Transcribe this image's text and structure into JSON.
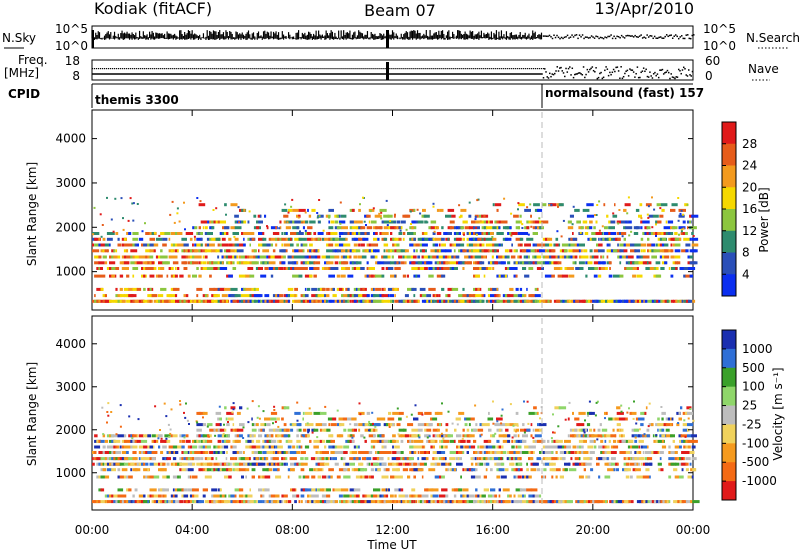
{
  "header": {
    "site": "Kodiak (fitACF)",
    "beam": "Beam 07",
    "date": "13/Apr/2010"
  },
  "noise_panel": {
    "left_label": "N.Sky",
    "right_label": "N.Search",
    "left_ticks": [
      "10^5",
      "10^0"
    ],
    "right_ticks": [
      "10^5",
      "10^0"
    ]
  },
  "freq_panel": {
    "left_label_1": "Freq.",
    "left_label_2": "[MHz]",
    "right_label": "Nave",
    "left_ticks": [
      "18",
      "8"
    ],
    "right_ticks": [
      "60",
      "0"
    ]
  },
  "cpid": {
    "label": "CPID",
    "modes": [
      {
        "name": "themis 3300",
        "start": "00:00"
      },
      {
        "name": "normalsound (fast) 157",
        "start": "18:00"
      }
    ]
  },
  "chart_data": [
    {
      "type": "heatmap",
      "name": "power",
      "ylabel": "Slant Range [km]",
      "xlabel": "",
      "x_range_hours": [
        0,
        24
      ],
      "ylim": [
        180,
        4600
      ],
      "yticks": [
        1000,
        2000,
        3000,
        4000
      ],
      "colorbar": {
        "label": "Power [dB]",
        "ticks": [
          4,
          8,
          12,
          16,
          20,
          24,
          28
        ],
        "range": [
          0,
          32
        ],
        "colors": [
          "#0b2ff0",
          "#2a4fb8",
          "#2e8b6e",
          "#8cc63f",
          "#f5d800",
          "#f39a1e",
          "#e65c1a",
          "#e01a1a"
        ]
      },
      "range_bands_km": [
        {
          "center": 330,
          "hours": [
            [
              0,
              24
            ]
          ],
          "density": 0.9
        },
        {
          "center": 460,
          "hours": [
            [
              0,
              18
            ]
          ],
          "density": 0.5
        },
        {
          "center": 600,
          "hours": [
            [
              0,
              18
            ]
          ],
          "density": 0.35
        },
        {
          "center": 900,
          "hours": [
            [
              0,
              18
            ],
            [
              18,
              24
            ]
          ],
          "density": 0.3
        },
        {
          "center": 1070,
          "hours": [
            [
              0,
              24
            ]
          ],
          "density": 0.45
        },
        {
          "center": 1200,
          "hours": [
            [
              0,
              18
            ],
            [
              18,
              24
            ]
          ],
          "density": 0.55
        },
        {
          "center": 1330,
          "hours": [
            [
              0,
              5
            ],
            [
              5,
              18
            ],
            [
              18,
              24
            ]
          ],
          "density": 0.6
        },
        {
          "center": 1470,
          "hours": [
            [
              0,
              18
            ],
            [
              18,
              24
            ]
          ],
          "density": 0.55
        },
        {
          "center": 1600,
          "hours": [
            [
              0,
              18
            ],
            [
              18,
              24
            ]
          ],
          "density": 0.5
        },
        {
          "center": 1730,
          "hours": [
            [
              0,
              18
            ],
            [
              18,
              24
            ]
          ],
          "density": 0.45
        },
        {
          "center": 1860,
          "hours": [
            [
              0,
              18
            ],
            [
              19,
              24
            ]
          ],
          "density": 0.45
        },
        {
          "center": 1990,
          "hours": [
            [
              4,
              18
            ],
            [
              19,
              24
            ]
          ],
          "density": 0.4
        },
        {
          "center": 2120,
          "hours": [
            [
              4,
              18
            ],
            [
              19,
              24
            ]
          ],
          "density": 0.35
        },
        {
          "center": 2250,
          "hours": [
            [
              5,
              18
            ],
            [
              19,
              24
            ]
          ],
          "density": 0.25
        },
        {
          "center": 2380,
          "hours": [
            [
              4,
              18
            ],
            [
              19,
              24
            ]
          ],
          "density": 0.2
        },
        {
          "center": 2510,
          "hours": [
            [
              4,
              8
            ],
            [
              16,
              24
            ]
          ],
          "density": 0.1
        }
      ]
    },
    {
      "type": "heatmap",
      "name": "velocity",
      "ylabel": "Slant Range [km]",
      "xlabel": "Time UT",
      "x_range_hours": [
        0,
        24
      ],
      "xticks": [
        "00:00",
        "04:00",
        "08:00",
        "12:00",
        "16:00",
        "20:00",
        "00:00"
      ],
      "ylim": [
        180,
        4600
      ],
      "yticks": [
        1000,
        2000,
        3000,
        4000
      ],
      "colorbar": {
        "label": "Velocity [m s^-1]",
        "ticks": [
          1000,
          500,
          100,
          25,
          -25,
          -100,
          -500,
          -1000
        ],
        "range": [
          -1250,
          1250
        ],
        "colors": [
          "#1a2fb0",
          "#2f6fd6",
          "#3aa02a",
          "#8fd66a",
          "#bdbdbd",
          "#f0d25c",
          "#f59a1e",
          "#f46a14",
          "#e01a1a"
        ]
      }
    }
  ]
}
